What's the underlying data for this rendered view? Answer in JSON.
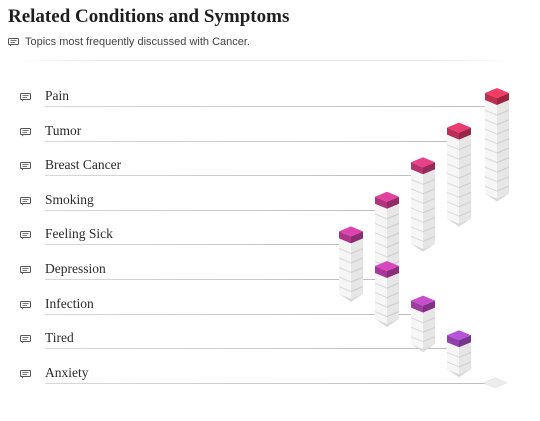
{
  "header": {
    "title": "Related Conditions and Symptoms",
    "subtitle": "Topics most frequently discussed with Cancer."
  },
  "colors": {
    "stack_white": "#f2f2f2",
    "rule": "#d0d0d0"
  },
  "items": [
    {
      "label": "Pain",
      "icon": "speech-bubble-icon",
      "level": 9,
      "cap_color": "#d8355a"
    },
    {
      "label": "Tumor",
      "icon": "speech-bubble-icon",
      "level": 8,
      "cap_color": "#d33565"
    },
    {
      "label": "Breast Cancer",
      "icon": "speech-bubble-icon",
      "level": 7,
      "cap_color": "#cf3a7a"
    },
    {
      "label": "Smoking",
      "icon": "speech-bubble-icon",
      "level": 6,
      "cap_color": "#c93b8e"
    },
    {
      "label": "Feeling Sick",
      "icon": "speech-bubble-icon",
      "level": 5,
      "cap_color": "#c43c9c"
    },
    {
      "label": "Depression",
      "icon": "speech-bubble-icon",
      "level": 4,
      "cap_color": "#bf3faa"
    },
    {
      "label": "Infection",
      "icon": "speech-bubble-icon",
      "level": 3,
      "cap_color": "#b346b7"
    },
    {
      "label": "Tired",
      "icon": "speech-bubble-icon",
      "level": 2,
      "cap_color": "#a24bc3"
    },
    {
      "label": "Anxiety",
      "icon": "speech-bubble-icon",
      "level": 0,
      "cap_color": "#e9e9e9"
    }
  ]
}
